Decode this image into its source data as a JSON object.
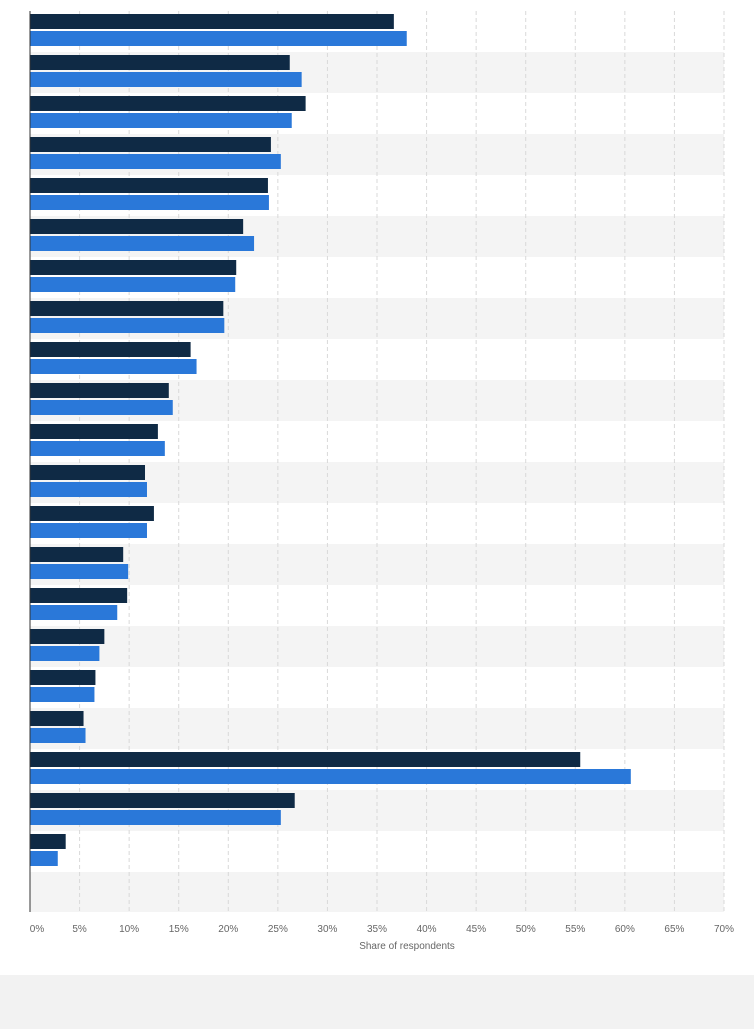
{
  "chart_data": {
    "type": "bar",
    "orientation": "horizontal",
    "xlabel": "Share of respondents",
    "xlim": [
      0,
      70
    ],
    "x_ticks": [
      "0%",
      "5%",
      "10%",
      "15%",
      "20%",
      "25%",
      "30%",
      "35%",
      "40%",
      "45%",
      "50%",
      "55%",
      "60%",
      "65%",
      "70%"
    ],
    "grid": true,
    "legend": "none",
    "categories": [
      "",
      "",
      "",
      "",
      "",
      "",
      "",
      "",
      "",
      "",
      "",
      "",
      "",
      "",
      "",
      "",
      "",
      "",
      "",
      "",
      ""
    ],
    "series": [
      {
        "color": "#0f2a45",
        "values": [
          36.7,
          26.2,
          27.8,
          24.3,
          24.0,
          21.5,
          20.8,
          19.5,
          16.2,
          14.0,
          12.9,
          11.6,
          12.5,
          9.4,
          9.8,
          7.5,
          6.6,
          5.4,
          55.5,
          26.7,
          3.6
        ]
      },
      {
        "color": "#2a78d9",
        "values": [
          38.0,
          27.4,
          26.4,
          25.3,
          24.1,
          22.6,
          20.7,
          19.6,
          16.8,
          14.4,
          13.6,
          11.8,
          11.8,
          9.9,
          8.8,
          7.0,
          6.5,
          5.6,
          60.6,
          25.3,
          2.8
        ]
      }
    ]
  }
}
